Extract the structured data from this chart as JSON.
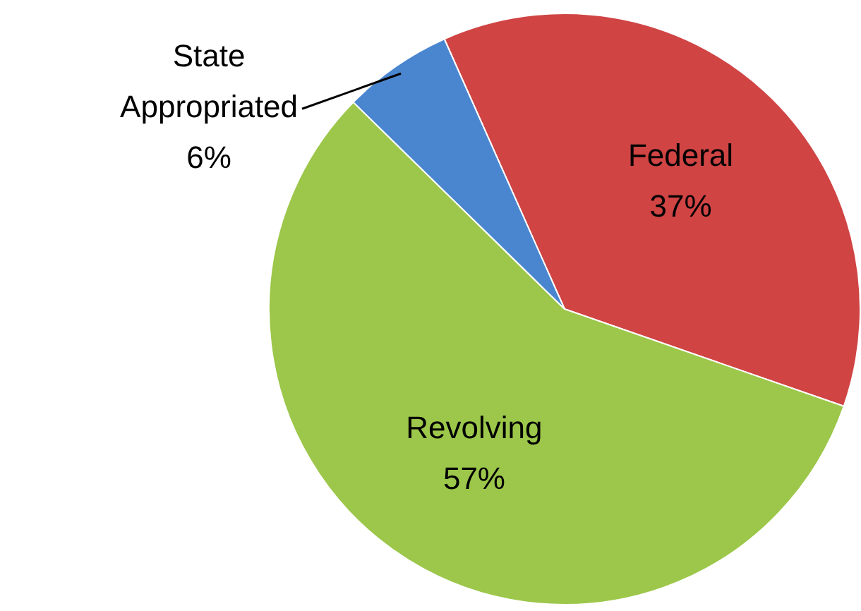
{
  "chart_data": {
    "type": "pie",
    "categories": [
      "Federal",
      "Revolving",
      "State Appropriated"
    ],
    "values": [
      37,
      57,
      6
    ],
    "value_labels": [
      "37%",
      "57%",
      "6%"
    ],
    "colors": [
      "#d04444",
      "#9cc74a",
      "#4a86d0"
    ],
    "legend": false
  }
}
